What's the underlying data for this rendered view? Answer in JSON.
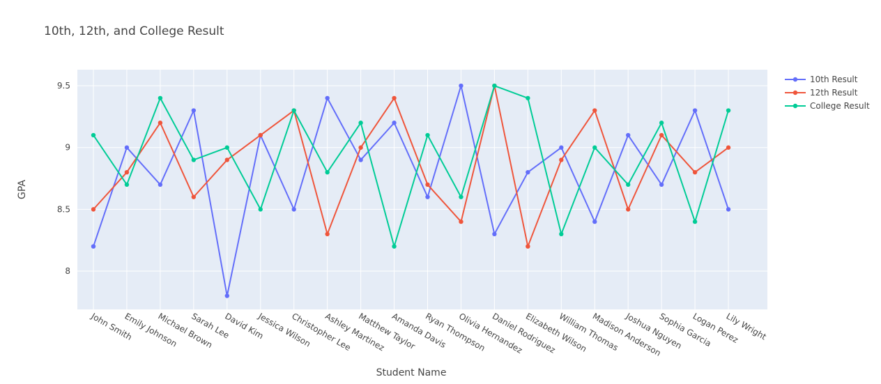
{
  "chart_data": {
    "type": "line",
    "title": "10th, 12th, and College Result",
    "xlabel": "Student Name",
    "ylabel": "GPA",
    "ylim": [
      7.69,
      9.63
    ],
    "yticks": [
      8,
      8.5,
      9,
      9.5
    ],
    "grid": true,
    "legend_position": "top-right",
    "categories": [
      "John Smith",
      "Emily Johnson",
      "Michael Brown",
      "Sarah Lee",
      "David Kim",
      "Jessica Wilson",
      "Christopher Lee",
      "Ashley Martinez",
      "Matthew Taylor",
      "Amanda Davis",
      "Ryan Thompson",
      "Olivia Hernandez",
      "Daniel Rodriguez",
      "Elizabeth Wilson",
      "William Thomas",
      "Madison Anderson",
      "Joshua Nguyen",
      "Sophia Garcia",
      "Logan Perez",
      "Lily Wright"
    ],
    "series": [
      {
        "name": "10th Result",
        "color": "#636efa",
        "values": [
          8.2,
          9.0,
          8.7,
          9.3,
          7.8,
          9.1,
          8.5,
          9.4,
          8.9,
          9.2,
          8.6,
          9.5,
          8.3,
          8.8,
          9.0,
          8.4,
          9.1,
          8.7,
          9.3,
          8.5
        ]
      },
      {
        "name": "12th Result",
        "color": "#ef553b",
        "values": [
          8.5,
          8.8,
          9.2,
          8.6,
          8.9,
          9.1,
          9.3,
          8.3,
          9.0,
          9.4,
          8.7,
          8.4,
          9.5,
          8.2,
          8.9,
          9.3,
          8.5,
          9.1,
          8.8,
          9.0
        ]
      },
      {
        "name": "College Result",
        "color": "#00cc96",
        "values": [
          9.1,
          8.7,
          9.4,
          8.9,
          9.0,
          8.5,
          9.3,
          8.8,
          9.2,
          8.2,
          9.1,
          8.6,
          9.5,
          9.4,
          8.3,
          9.0,
          8.7,
          9.2,
          8.4,
          9.3
        ]
      }
    ]
  }
}
